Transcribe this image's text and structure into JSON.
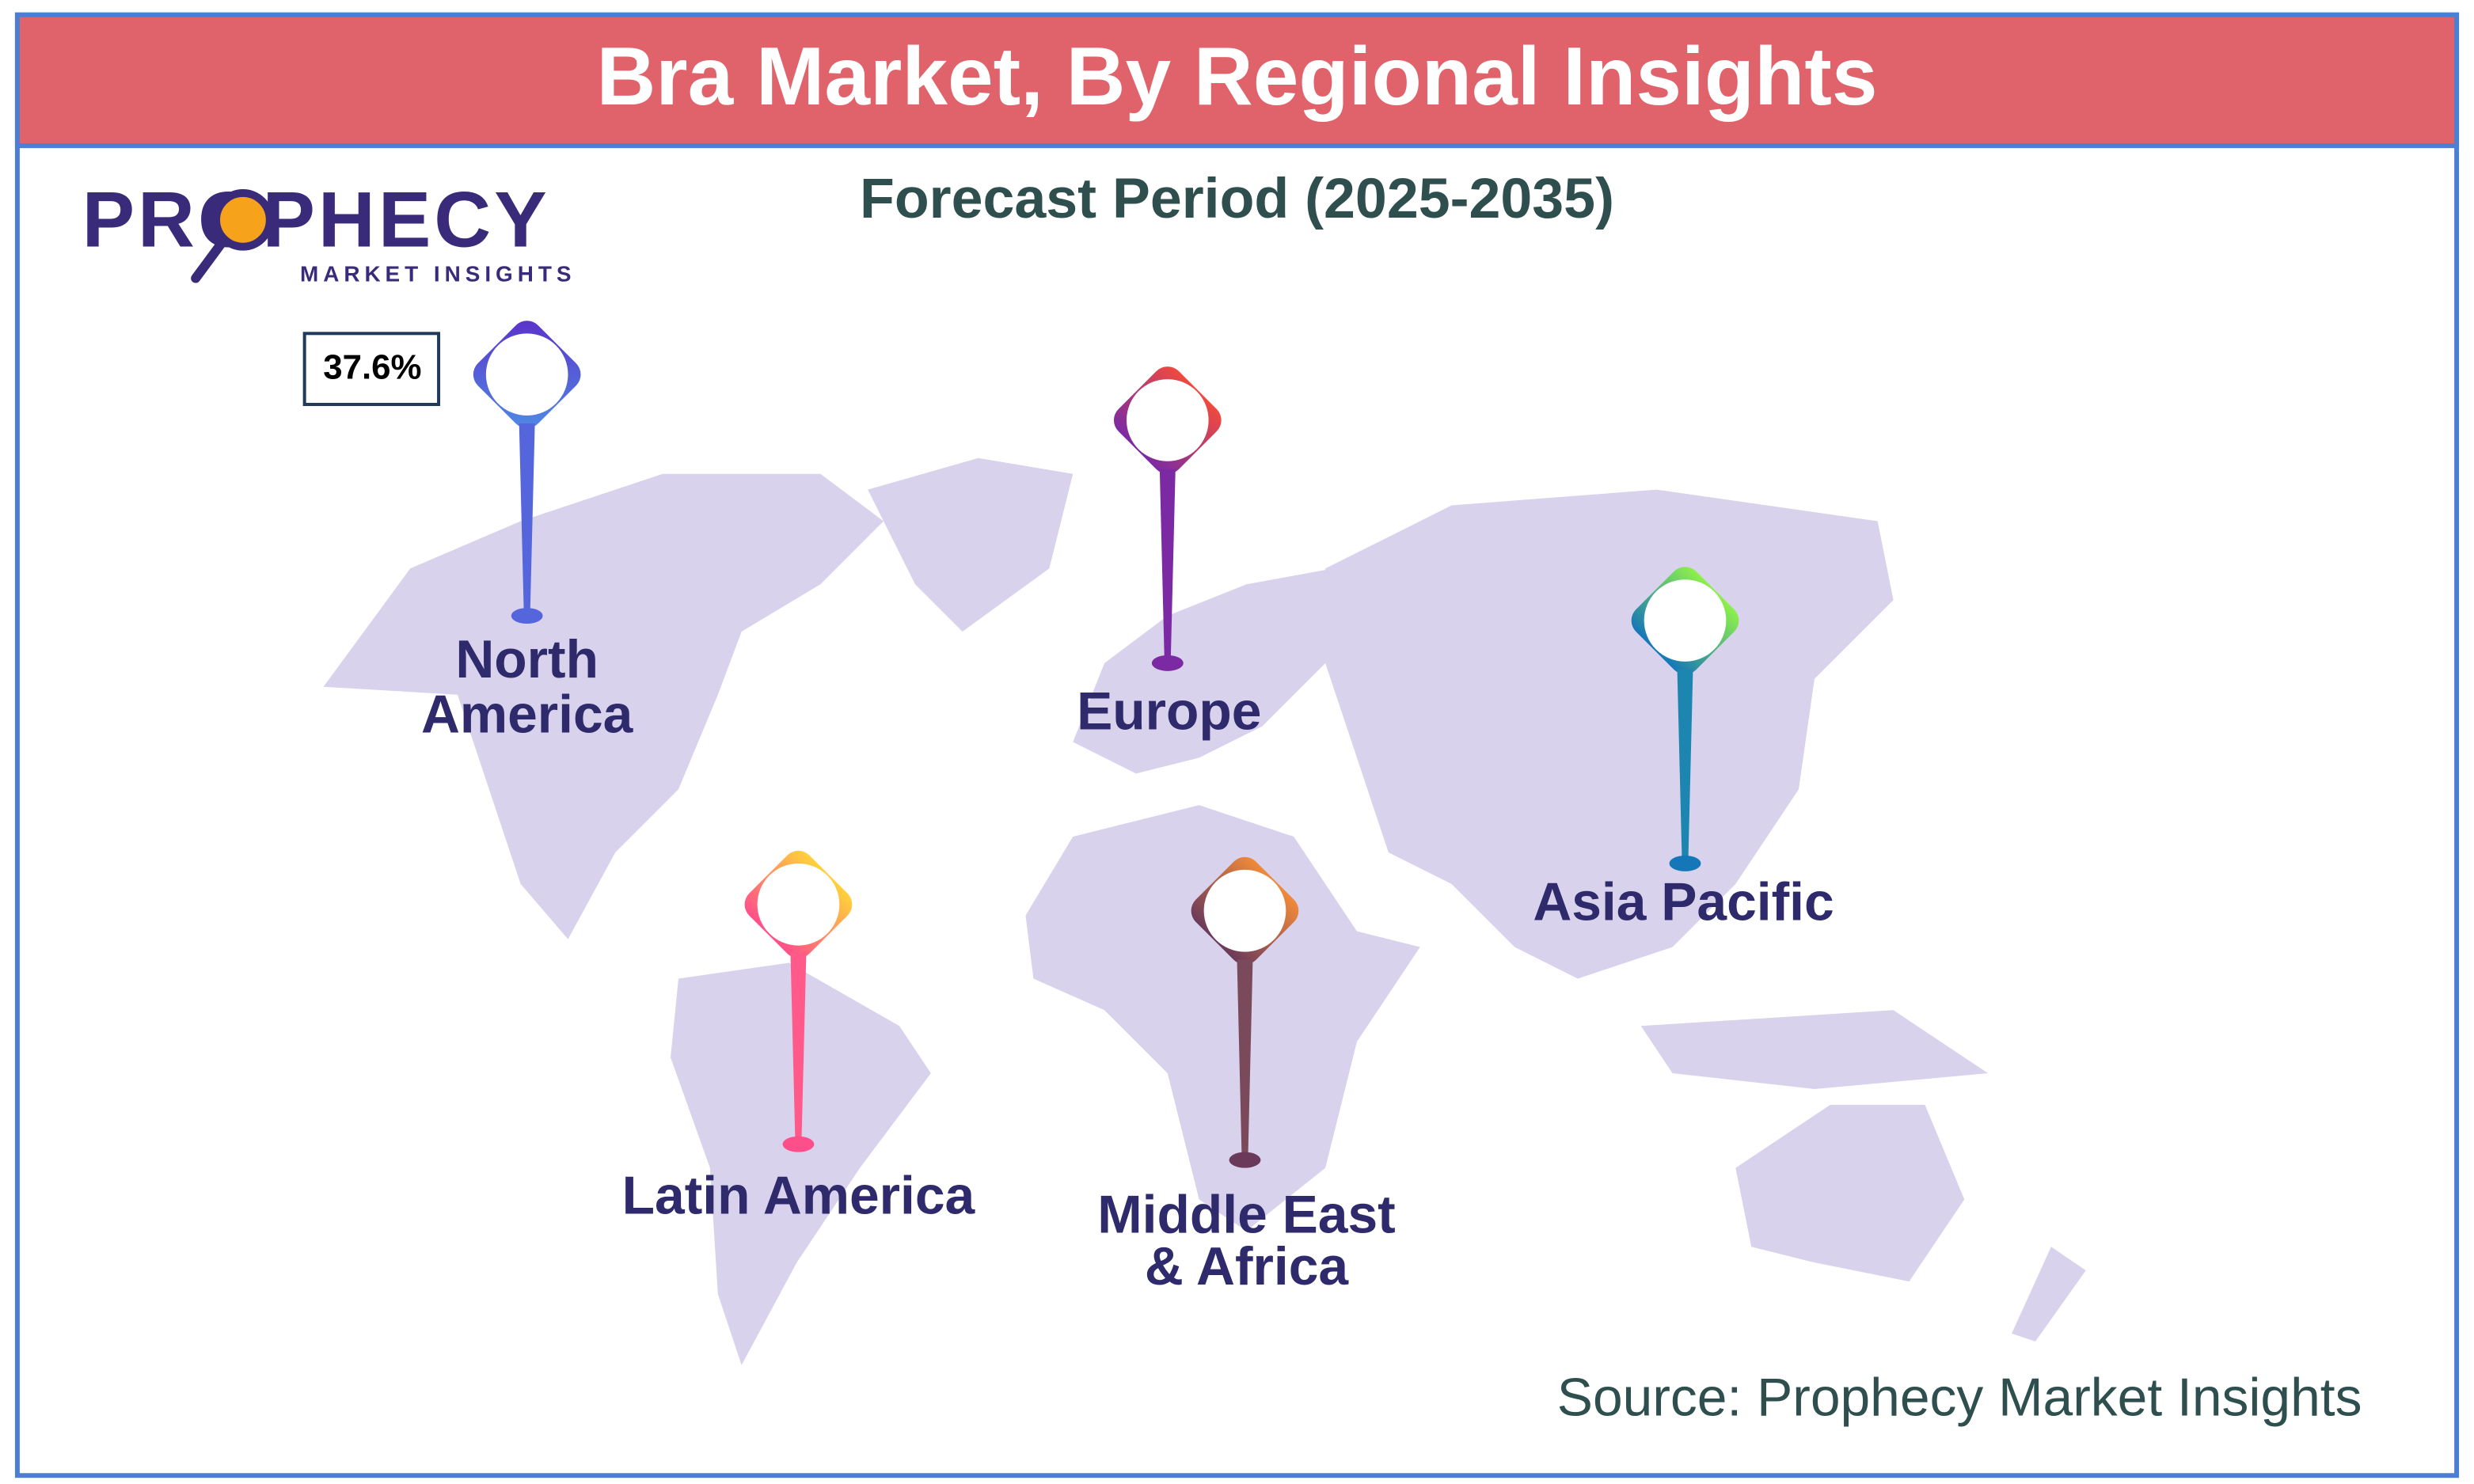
{
  "header": {
    "title": "Bra Market, By Regional Insights"
  },
  "subtitle": "Forecast Period (2025-2035)",
  "logo": {
    "name": "PROPHECY",
    "tagline": "MARKET INSIGHTS"
  },
  "regions": [
    {
      "label": [
        "North",
        "America"
      ],
      "share": "37.6%"
    },
    {
      "label": [
        "Europe"
      ]
    },
    {
      "label": [
        "Asia Pacific"
      ]
    },
    {
      "label": [
        "Latin America"
      ]
    },
    {
      "label": [
        "Middle East",
        "& Africa"
      ]
    }
  ],
  "source": "Source: Prophecy Market Insights"
}
